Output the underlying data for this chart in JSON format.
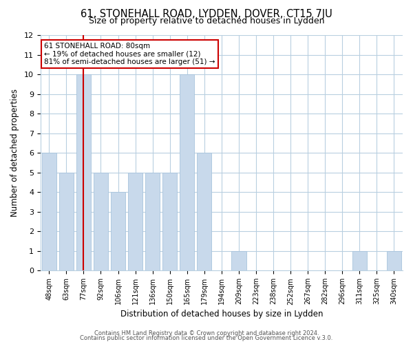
{
  "title_line1": "61, STONEHALL ROAD, LYDDEN, DOVER, CT15 7JU",
  "title_line2": "Size of property relative to detached houses in Lydden",
  "xlabel": "Distribution of detached houses by size in Lydden",
  "ylabel": "Number of detached properties",
  "footer_line1": "Contains HM Land Registry data © Crown copyright and database right 2024.",
  "footer_line2": "Contains public sector information licensed under the Open Government Licence v.3.0.",
  "categories": [
    "48sqm",
    "63sqm",
    "77sqm",
    "92sqm",
    "106sqm",
    "121sqm",
    "136sqm",
    "150sqm",
    "165sqm",
    "179sqm",
    "194sqm",
    "209sqm",
    "223sqm",
    "238sqm",
    "252sqm",
    "267sqm",
    "282sqm",
    "296sqm",
    "311sqm",
    "325sqm",
    "340sqm"
  ],
  "values": [
    6,
    5,
    10,
    5,
    4,
    5,
    5,
    5,
    10,
    6,
    0,
    1,
    0,
    0,
    0,
    0,
    0,
    0,
    1,
    0,
    1
  ],
  "bar_color": "#c8d9eb",
  "bar_edge_color": "#a8c4dd",
  "highlight_bar_index": 2,
  "highlight_line_color": "#cc0000",
  "annotation_title": "61 STONEHALL ROAD: 80sqm",
  "annotation_line2": "← 19% of detached houses are smaller (12)",
  "annotation_line3": "81% of semi-detached houses are larger (51) →",
  "annotation_box_edgecolor": "#cc0000",
  "annotation_box_facecolor": "#ffffff",
  "ylim": [
    0,
    12
  ],
  "yticks": [
    0,
    1,
    2,
    3,
    4,
    5,
    6,
    7,
    8,
    9,
    10,
    11,
    12
  ],
  "background_color": "#ffffff",
  "grid_color": "#b8cfe0"
}
